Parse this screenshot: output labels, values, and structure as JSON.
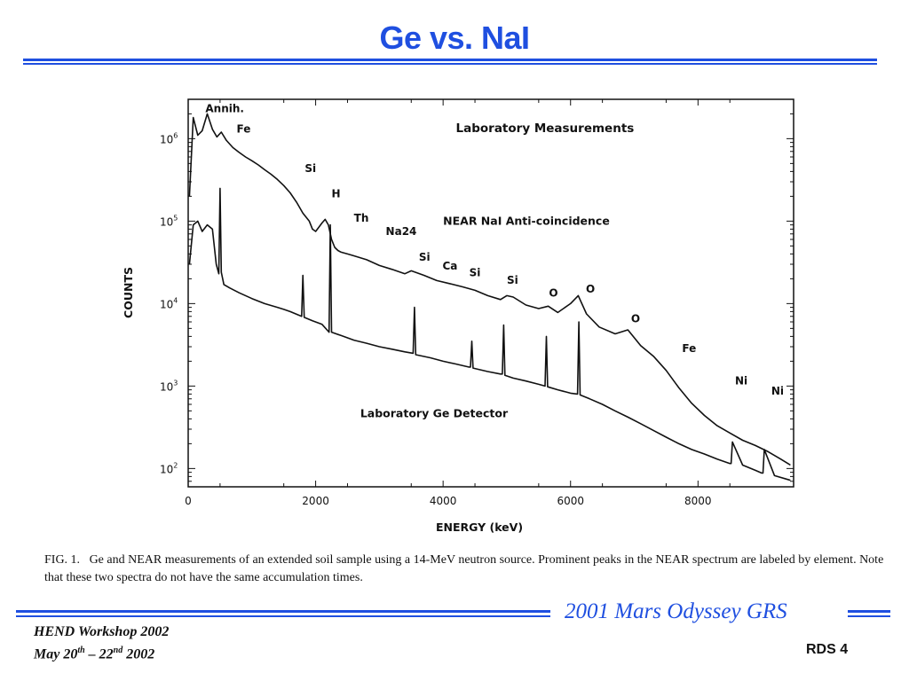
{
  "slide": {
    "title": "Ge vs. NaI",
    "footer_title": "2001 Mars Odyssey GRS",
    "workshop_line1": "HEND Workshop 2002",
    "date_a": "May 20",
    "date_a_sup": "th",
    "date_sep": " – 22",
    "date_b_sup": "nd",
    "date_year": " 2002",
    "slide_number": "RDS 4",
    "accent_color": "#1f4fe0"
  },
  "caption": {
    "label": "FIG. 1.",
    "text": "Ge and NEAR measurements of an extended soil sample using a 14-MeV neutron source. Prominent peaks in the NEAR spectrum are labeled by element. Note that these two spectra do not have the same accumulation times."
  },
  "chart_data": {
    "type": "line",
    "title": "Laboratory Measurements",
    "xlabel": "ENERGY (keV)",
    "ylabel": "COUNTS",
    "xlim": [
      0,
      9500
    ],
    "ylim": [
      60,
      3000000
    ],
    "yscale": "log",
    "x_ticks": [
      0,
      2000,
      4000,
      6000,
      8000
    ],
    "x_tick_labels": [
      "0",
      "2000",
      "4000",
      "6000",
      "8000"
    ],
    "y_tick_bases": [
      "10",
      "10",
      "10",
      "10",
      "10"
    ],
    "y_tick_exps": [
      "2",
      "3",
      "4",
      "5",
      "6"
    ],
    "y_tick_values": [
      100,
      1000,
      10000,
      100000,
      1000000
    ],
    "grid": false,
    "series": [
      {
        "name": "NEAR NaI Anti-coincidence",
        "x": [
          20,
          80,
          150,
          220,
          300,
          380,
          450,
          520,
          600,
          700,
          800,
          900,
          1000,
          1100,
          1200,
          1300,
          1400,
          1500,
          1600,
          1700,
          1800,
          1900,
          1950,
          2000,
          2100,
          2150,
          2200,
          2250,
          2300,
          2350,
          2400,
          2500,
          2600,
          2800,
          3000,
          3200,
          3400,
          3500,
          3700,
          3900,
          4100,
          4300,
          4500,
          4700,
          4900,
          5000,
          5100,
          5300,
          5500,
          5650,
          5800,
          6000,
          6120,
          6250,
          6450,
          6700,
          6900,
          7100,
          7300,
          7500,
          7700,
          7900,
          8100,
          8300,
          8500,
          8700,
          8900,
          9100,
          9300,
          9450
        ],
        "y": [
          200000,
          1800000,
          1100000,
          1250000,
          2000000,
          1300000,
          1050000,
          1200000,
          950000,
          780000,
          680000,
          600000,
          540000,
          480000,
          420000,
          370000,
          320000,
          270000,
          220000,
          170000,
          125000,
          100000,
          80000,
          75000,
          95000,
          105000,
          90000,
          60000,
          48000,
          44000,
          42000,
          40000,
          38000,
          34000,
          29000,
          26000,
          23000,
          25000,
          22000,
          19000,
          17500,
          16000,
          14500,
          12500,
          11200,
          12500,
          12000,
          9600,
          8700,
          9300,
          7800,
          10000,
          12500,
          7500,
          5200,
          4300,
          4800,
          3100,
          2300,
          1550,
          950,
          620,
          440,
          330,
          270,
          220,
          190,
          160,
          130,
          110
        ]
      },
      {
        "name": "Laboratory Ge Detector",
        "x": [
          20,
          80,
          150,
          220,
          300,
          380,
          440,
          480,
          500,
          520,
          560,
          650,
          800,
          1000,
          1200,
          1400,
          1500,
          1600,
          1780,
          1800,
          1820,
          1950,
          2100,
          2210,
          2230,
          2250,
          2400,
          2600,
          2800,
          3000,
          3200,
          3400,
          3530,
          3550,
          3570,
          3800,
          4000,
          4200,
          4400,
          4430,
          4450,
          4470,
          4700,
          4900,
          4930,
          4950,
          4970,
          5100,
          5300,
          5500,
          5600,
          5620,
          5640,
          5800,
          6000,
          6110,
          6130,
          6150,
          6300,
          6500,
          6700,
          6900,
          7100,
          7300,
          7500,
          7700,
          7900,
          8100,
          8300,
          8500,
          8520,
          8540,
          8700,
          8900,
          9000,
          9020,
          9040,
          9200,
          9450
        ],
        "y": [
          30000,
          90000,
          100000,
          75000,
          90000,
          80000,
          30000,
          23000,
          250000,
          24000,
          17000,
          15500,
          13500,
          11500,
          10000,
          9000,
          8500,
          8000,
          7000,
          22000,
          6800,
          6200,
          5600,
          4500,
          90000,
          4500,
          4100,
          3600,
          3300,
          3000,
          2800,
          2600,
          2500,
          9000,
          2400,
          2200,
          2000,
          1850,
          1700,
          1700,
          3500,
          1650,
          1500,
          1400,
          1400,
          5500,
          1350,
          1250,
          1150,
          1050,
          1000,
          4000,
          980,
          900,
          820,
          800,
          6000,
          780,
          700,
          600,
          500,
          420,
          350,
          290,
          240,
          200,
          170,
          150,
          130,
          115,
          115,
          210,
          110,
          95,
          88,
          88,
          170,
          82,
          72
        ]
      }
    ],
    "peak_labels": [
      {
        "text": "Annih.",
        "x": 270,
        "y": 2100000
      },
      {
        "text": "Fe",
        "x": 760,
        "y": 1180000
      },
      {
        "text": "Si",
        "x": 1830,
        "y": 395000
      },
      {
        "text": "H",
        "x": 2250,
        "y": 195000
      },
      {
        "text": "Th",
        "x": 2600,
        "y": 98000
      },
      {
        "text": "Na24",
        "x": 3100,
        "y": 68000
      },
      {
        "text": "Si",
        "x": 3620,
        "y": 33000
      },
      {
        "text": "Ca",
        "x": 3990,
        "y": 26000
      },
      {
        "text": "Si",
        "x": 4410,
        "y": 21500
      },
      {
        "text": "Si",
        "x": 5000,
        "y": 17500
      },
      {
        "text": "O",
        "x": 5660,
        "y": 12200
      },
      {
        "text": "O",
        "x": 6240,
        "y": 13500
      },
      {
        "text": "O",
        "x": 6950,
        "y": 5900
      },
      {
        "text": "Fe",
        "x": 7750,
        "y": 2600
      },
      {
        "text": "Ni",
        "x": 8580,
        "y": 1050
      },
      {
        "text": "Ni",
        "x": 9150,
        "y": 790
      }
    ],
    "annotations": [
      {
        "text": "Laboratory Measurements",
        "x": 4200,
        "y": 1200000
      },
      {
        "text": "NEAR NaI Anti-coincidence",
        "x": 4000,
        "y": 90000
      },
      {
        "text": "Laboratory Ge Detector",
        "x": 2700,
        "y": 420
      }
    ]
  }
}
